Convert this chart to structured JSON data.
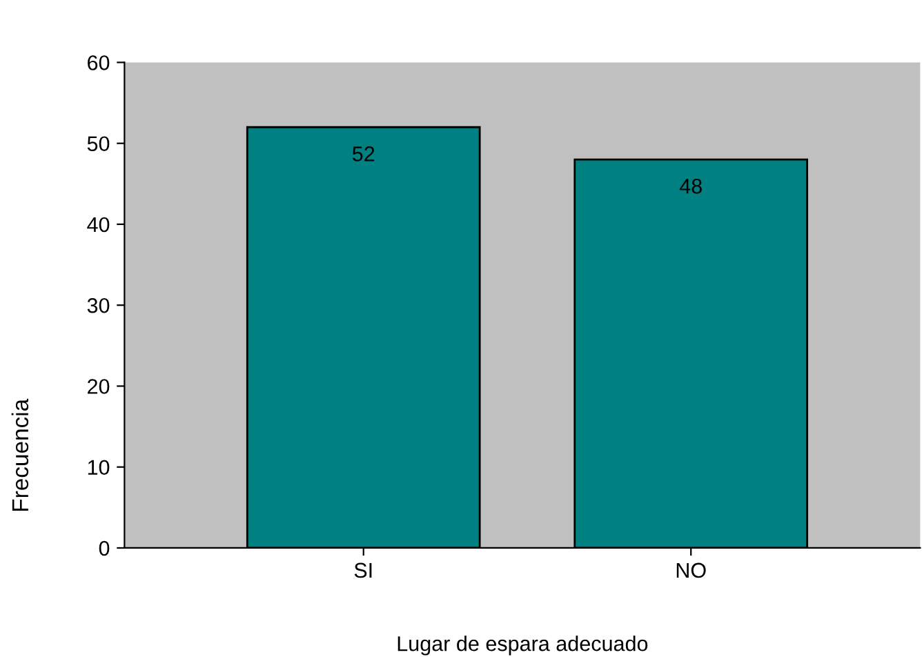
{
  "chart_data": {
    "type": "bar",
    "xlabel": "Lugar de espara adecuado",
    "ylabel": "Frecuencia",
    "categories": [
      "SI",
      "NO"
    ],
    "values": [
      52,
      48
    ],
    "color": "#008080",
    "ylim": [
      0,
      60
    ],
    "yticks": [
      0,
      10,
      20,
      30,
      40,
      50,
      60
    ],
    "data_labels": true,
    "grid": false
  }
}
